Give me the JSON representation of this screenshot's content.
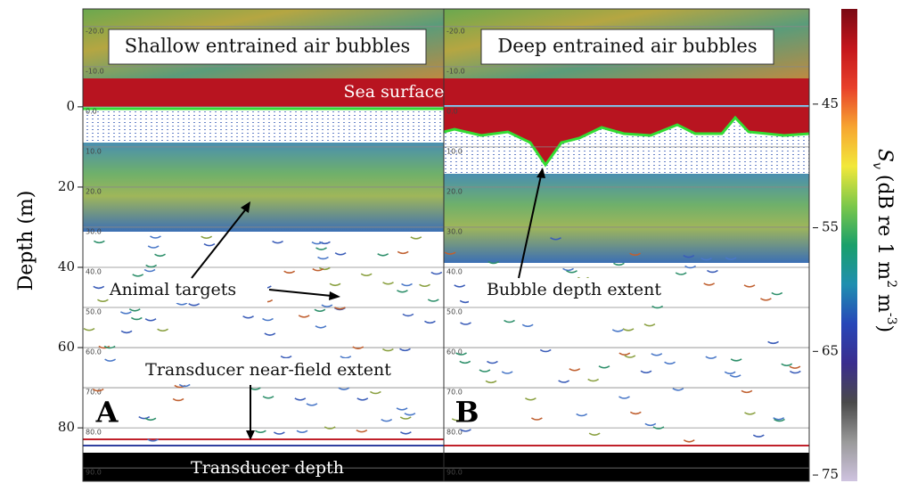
{
  "chart_data": {
    "type": "echogram",
    "ylabel": "Depth (m)",
    "ylim": [
      -24.4,
      93.3
    ],
    "yticks": [
      0,
      20,
      40,
      60,
      80
    ],
    "grid_depths": [
      {
        "value": -20,
        "label": "-20.0"
      },
      {
        "value": -10,
        "label": "-10.0"
      },
      {
        "value": 0,
        "label": "0.0"
      },
      {
        "value": 10,
        "label": "10.0"
      },
      {
        "value": 20,
        "label": "20.0"
      },
      {
        "value": 30,
        "label": "30.0"
      },
      {
        "value": 40,
        "label": "40.0"
      },
      {
        "value": 50,
        "label": "50.0"
      },
      {
        "value": 60,
        "label": "60.0"
      },
      {
        "value": 70,
        "label": "70.0"
      },
      {
        "value": 80,
        "label": "80.0"
      },
      {
        "value": 90,
        "label": "90.0"
      }
    ],
    "panels": [
      {
        "letter": "A",
        "title": "Shallow entrained air bubbles"
      },
      {
        "letter": "B",
        "title": "Deep entrained air bubbles"
      }
    ],
    "annotations": {
      "sea_surface": "Sea surface",
      "animal_targets": "Animal targets",
      "near_field": "Transducer near-field extent",
      "transducer_depth": "Transducer depth",
      "bubble_extent": "Bubble depth extent"
    },
    "colorbar": {
      "label": {
        "symbol": "S",
        "subscript": "v",
        "text": "(dB re 1 m",
        "sup1": "2",
        "mid": " m",
        "sup2": "-3",
        "end": ")"
      },
      "clim": [
        37.3,
        75.5
      ],
      "ticks": [
        45,
        55,
        65,
        75
      ],
      "colors": [
        "#7a0a14",
        "#c4161c",
        "#e8402a",
        "#f7a531",
        "#f2e83a",
        "#7cc84a",
        "#1aa06a",
        "#1f8fb0",
        "#2747b8",
        "#3a2d8e",
        "#4a4a4a",
        "#9a9a9a",
        "#cfc3e0"
      ]
    }
  }
}
